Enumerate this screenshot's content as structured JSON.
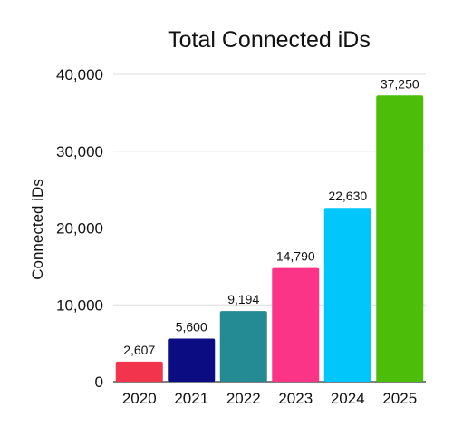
{
  "chart_data": {
    "type": "bar",
    "title": "Total Connected iDs",
    "xlabel": "",
    "ylabel": "Connected iDs",
    "categories": [
      "2020",
      "2021",
      "2022",
      "2023",
      "2024",
      "2025"
    ],
    "values": [
      2607,
      5600,
      9194,
      14790,
      22630,
      37250
    ],
    "data_labels": [
      "2,607",
      "5,600",
      "9,194",
      "14,790",
      "22,630",
      "37,250"
    ],
    "colors": [
      "#f2344c",
      "#0c0c82",
      "#248a94",
      "#fb3487",
      "#00c6fc",
      "#4cbe0a"
    ],
    "ylim": [
      0,
      40000
    ],
    "yticks": [
      0,
      10000,
      20000,
      30000,
      40000
    ],
    "ytick_labels": [
      "0",
      "10,000",
      "20,000",
      "30,000",
      "40,000"
    ],
    "grid": true,
    "legend": "none"
  }
}
